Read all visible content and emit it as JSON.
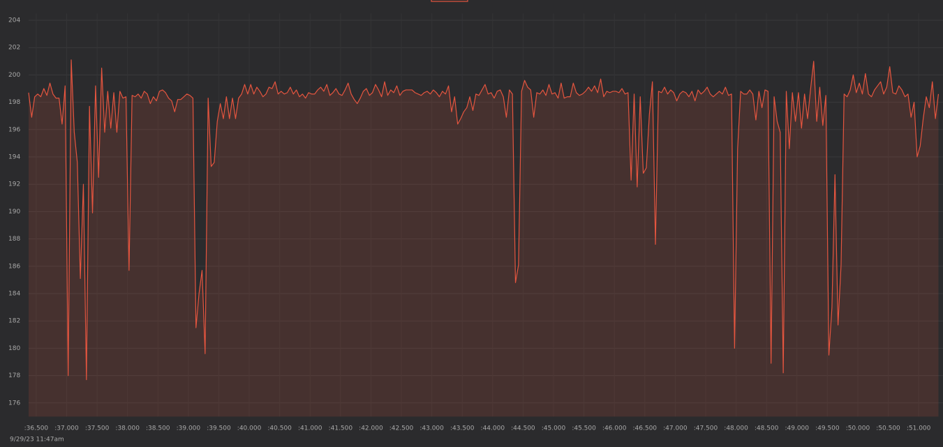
{
  "chart_data": {
    "type": "area",
    "footnote": "9/29/23 11:47am",
    "color": "#e5553f",
    "grid": true,
    "xlim": [
      36.375,
      51.4
    ],
    "ylim": [
      175,
      204.5
    ],
    "yticks": [
      176,
      178,
      180,
      182,
      184,
      186,
      188,
      190,
      192,
      194,
      196,
      198,
      200,
      202,
      204
    ],
    "xticks": [
      {
        "value": 36.5,
        "label": ":36.500"
      },
      {
        "value": 37.0,
        "label": ":37.000"
      },
      {
        "value": 37.5,
        "label": ":37.500"
      },
      {
        "value": 38.0,
        "label": ":38.000"
      },
      {
        "value": 38.5,
        "label": ":38.500"
      },
      {
        "value": 39.0,
        "label": ":39.000"
      },
      {
        "value": 39.5,
        "label": ":39.500"
      },
      {
        "value": 40.0,
        "label": ":40.000"
      },
      {
        "value": 40.5,
        "label": ":40.500"
      },
      {
        "value": 41.0,
        "label": ":41.000"
      },
      {
        "value": 41.5,
        "label": ":41.500"
      },
      {
        "value": 42.0,
        "label": ":42.000"
      },
      {
        "value": 42.5,
        "label": ":42.500"
      },
      {
        "value": 43.0,
        "label": ":43.000"
      },
      {
        "value": 43.5,
        "label": ":43.500"
      },
      {
        "value": 44.0,
        "label": ":44.000"
      },
      {
        "value": 44.5,
        "label": ":44.500"
      },
      {
        "value": 45.0,
        "label": ":45.000"
      },
      {
        "value": 45.5,
        "label": ":45.500"
      },
      {
        "value": 46.0,
        "label": ":46.000"
      },
      {
        "value": 46.5,
        "label": ":46.500"
      },
      {
        "value": 47.0,
        "label": ":47.000"
      },
      {
        "value": 47.5,
        "label": ":47.500"
      },
      {
        "value": 48.0,
        "label": ":48.000"
      },
      {
        "value": 48.5,
        "label": ":48.500"
      },
      {
        "value": 49.0,
        "label": ":49.000"
      },
      {
        "value": 49.5,
        "label": ":49.500"
      },
      {
        "value": 50.0,
        "label": ":50.000"
      },
      {
        "value": 50.5,
        "label": ":50.500"
      },
      {
        "value": 51.0,
        "label": ":51.000"
      }
    ],
    "x": [
      36.375,
      36.425,
      36.475,
      36.525,
      36.575,
      36.625,
      36.675,
      36.725,
      36.775,
      36.825,
      36.875,
      36.925,
      36.975,
      37.025,
      37.075,
      37.125,
      37.175,
      37.225,
      37.275,
      37.325,
      37.375,
      37.425,
      37.475,
      37.525,
      37.575,
      37.625,
      37.675,
      37.725,
      37.775,
      37.825,
      37.875,
      37.925,
      37.975,
      38.025,
      38.075,
      38.125,
      38.175,
      38.225,
      38.275,
      38.325,
      38.375,
      38.425,
      38.475,
      38.525,
      38.575,
      38.625,
      38.675,
      38.725,
      38.775,
      38.825,
      38.875,
      38.925,
      38.975,
      39.025,
      39.075,
      39.125,
      39.175,
      39.225,
      39.275,
      39.325,
      39.375,
      39.425,
      39.475,
      39.525,
      39.575,
      39.625,
      39.675,
      39.725,
      39.775,
      39.825,
      39.875,
      39.925,
      39.975,
      40.025,
      40.075,
      40.125,
      40.175,
      40.225,
      40.275,
      40.325,
      40.375,
      40.425,
      40.475,
      40.525,
      40.575,
      40.625,
      40.675,
      40.725,
      40.775,
      40.825,
      40.875,
      40.925,
      40.975,
      41.025,
      41.075,
      41.125,
      41.175,
      41.225,
      41.275,
      41.325,
      41.375,
      41.425,
      41.475,
      41.525,
      41.575,
      41.625,
      41.675,
      41.725,
      41.775,
      41.825,
      41.875,
      41.925,
      41.975,
      42.025,
      42.075,
      42.125,
      42.175,
      42.225,
      42.275,
      42.325,
      42.375,
      42.425,
      42.475,
      42.525,
      42.575,
      42.625,
      42.675,
      42.725,
      42.775,
      42.825,
      42.875,
      42.925,
      42.975,
      43.025,
      43.075,
      43.125,
      43.175,
      43.225,
      43.275,
      43.325,
      43.375,
      43.425,
      43.475,
      43.525,
      43.575,
      43.625,
      43.675,
      43.725,
      43.775,
      43.825,
      43.875,
      43.925,
      43.975,
      44.025,
      44.075,
      44.125,
      44.175,
      44.225,
      44.275,
      44.325,
      44.375,
      44.425,
      44.475,
      44.525,
      44.575,
      44.625,
      44.675,
      44.725,
      44.775,
      44.825,
      44.875,
      44.925,
      44.975,
      45.025,
      45.075,
      45.125,
      45.175,
      45.225,
      45.275,
      45.325,
      45.375,
      45.425,
      45.475,
      45.525,
      45.575,
      45.625,
      45.675,
      45.725,
      45.775,
      45.825,
      45.875,
      45.925,
      45.975,
      46.025,
      46.075,
      46.125,
      46.175,
      46.225,
      46.275,
      46.325,
      46.375,
      46.425,
      46.475,
      46.525,
      46.575,
      46.625,
      46.675,
      46.725,
      46.775,
      46.825,
      46.875,
      46.925,
      46.975,
      47.025,
      47.075,
      47.125,
      47.175,
      47.225,
      47.275,
      47.325,
      47.375,
      47.425,
      47.475,
      47.525,
      47.575,
      47.625,
      47.675,
      47.725,
      47.775,
      47.825,
      47.875,
      47.925,
      47.975,
      48.025,
      48.075,
      48.125,
      48.175,
      48.225,
      48.275,
      48.325,
      48.375,
      48.425,
      48.475,
      48.525,
      48.575,
      48.625,
      48.675,
      48.725,
      48.775,
      48.825,
      48.875,
      48.925,
      48.975,
      49.025,
      49.075,
      49.125,
      49.175,
      49.225,
      49.275,
      49.325,
      49.375,
      49.425,
      49.475,
      49.525,
      49.575,
      49.625,
      49.675,
      49.725,
      49.775,
      49.825,
      49.875,
      49.925,
      49.975,
      50.025,
      50.075,
      50.125,
      50.175,
      50.225,
      50.275,
      50.325,
      50.375,
      50.425,
      50.475,
      50.525,
      50.575,
      50.625,
      50.675,
      50.725,
      50.775,
      50.825,
      50.875,
      50.925,
      50.975,
      51.025,
      51.075,
      51.125,
      51.175,
      51.225,
      51.275,
      51.325
    ],
    "values": [
      198.7,
      196.9,
      198.4,
      198.6,
      198.4,
      199.0,
      198.5,
      199.4,
      198.6,
      198.3,
      198.3,
      196.4,
      199.2,
      178.0,
      201.1,
      195.8,
      193.6,
      185.1,
      192.0,
      177.7,
      197.7,
      189.9,
      199.2,
      192.5,
      200.5,
      195.8,
      198.8,
      196.1,
      198.7,
      195.8,
      198.8,
      198.3,
      198.4,
      185.7,
      198.5,
      198.4,
      198.6,
      198.3,
      198.8,
      198.6,
      197.9,
      198.4,
      198.1,
      198.8,
      198.9,
      198.7,
      198.3,
      198.1,
      197.3,
      198.2,
      198.2,
      198.4,
      198.6,
      198.5,
      198.3,
      181.5,
      184.0,
      185.7,
      179.6,
      198.3,
      193.3,
      193.6,
      196.6,
      197.9,
      196.8,
      198.4,
      196.8,
      198.3,
      196.8,
      198.3,
      198.6,
      199.3,
      198.6,
      199.3,
      198.6,
      199.1,
      198.8,
      198.4,
      198.6,
      199.1,
      199.0,
      199.5,
      198.6,
      198.8,
      198.6,
      198.7,
      199.1,
      198.6,
      198.9,
      198.4,
      198.6,
      198.3,
      198.7,
      198.6,
      198.6,
      198.9,
      199.1,
      198.8,
      199.3,
      198.5,
      198.7,
      199.0,
      198.6,
      198.5,
      198.9,
      199.4,
      198.6,
      198.2,
      197.9,
      198.3,
      198.8,
      199.0,
      198.5,
      198.7,
      199.3,
      198.9,
      198.4,
      199.5,
      198.5,
      198.9,
      198.7,
      199.2,
      198.5,
      198.8,
      198.9,
      198.9,
      198.9,
      198.7,
      198.6,
      198.5,
      198.7,
      198.8,
      198.6,
      198.9,
      198.7,
      198.4,
      198.8,
      198.6,
      199.2,
      197.3,
      198.4,
      196.4,
      196.8,
      197.3,
      197.6,
      198.4,
      197.4,
      198.6,
      198.5,
      198.9,
      199.3,
      198.6,
      198.7,
      198.3,
      198.8,
      198.9,
      198.4,
      196.9,
      198.9,
      198.6,
      184.8,
      186.1,
      198.8,
      199.6,
      199.1,
      198.9,
      196.9,
      198.7,
      198.6,
      198.9,
      198.5,
      199.3,
      198.6,
      198.7,
      198.3,
      199.4,
      198.3,
      198.4,
      198.4,
      199.4,
      198.7,
      198.5,
      198.6,
      198.8,
      199.1,
      198.8,
      199.2,
      198.7,
      199.7,
      198.4,
      198.8,
      198.7,
      198.8,
      198.8,
      198.7,
      199.0,
      198.6,
      198.7,
      192.3,
      198.6,
      191.8,
      198.4,
      192.8,
      193.2,
      197.1,
      199.5,
      187.6,
      198.8,
      198.7,
      199.1,
      198.6,
      198.9,
      198.7,
      198.1,
      198.6,
      198.8,
      198.7,
      198.4,
      198.8,
      198.1,
      198.9,
      198.6,
      198.8,
      199.1,
      198.6,
      198.4,
      198.6,
      198.8,
      198.6,
      199.1,
      198.5,
      198.6,
      180.0,
      194.6,
      198.8,
      198.6,
      198.6,
      198.9,
      198.6,
      196.7,
      198.8,
      197.6,
      198.9,
      198.8,
      178.9,
      198.4,
      196.6,
      195.8,
      178.2,
      198.8,
      194.6,
      198.7,
      196.6,
      198.7,
      196.1,
      198.6,
      196.8,
      199.0,
      201.0,
      196.6,
      199.1,
      196.3,
      198.5,
      179.5,
      183.0,
      192.7,
      181.7,
      186.1,
      198.6,
      198.4,
      198.9,
      200.0,
      198.7,
      199.4,
      198.6,
      200.1,
      198.6,
      198.4,
      198.9,
      199.2,
      199.5,
      198.6,
      199.1,
      200.6,
      198.7,
      198.6,
      199.2,
      198.9,
      198.4,
      198.6,
      196.9,
      198.0,
      194.0,
      194.8,
      196.8,
      198.4,
      197.6,
      199.5,
      196.8,
      198.6
    ]
  }
}
